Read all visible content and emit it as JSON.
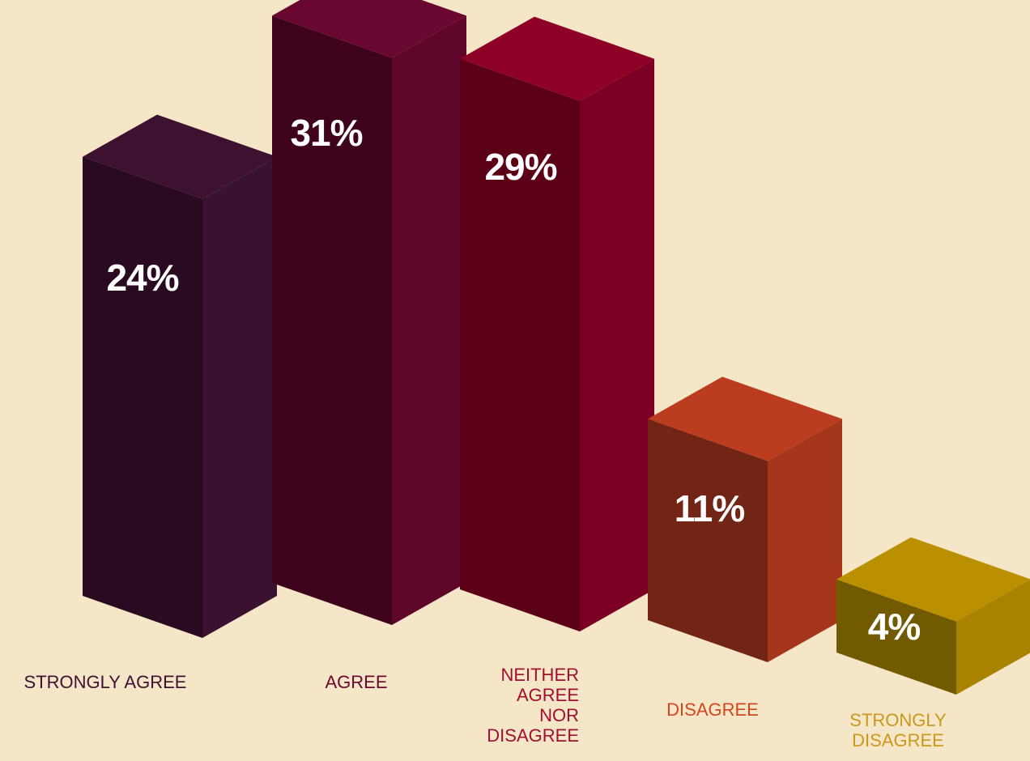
{
  "chart_data": {
    "type": "bar",
    "title": "",
    "xlabel": "",
    "ylabel": "",
    "unit": "%",
    "categories": [
      "STRONGLY AGREE",
      "AGREE",
      "NEITHER AGREE NOR DISAGREE",
      "DISAGREE",
      "STRONGLY DISAGREE"
    ],
    "category_label_lines": [
      [
        "STRONGLY AGREE"
      ],
      [
        "AGREE"
      ],
      [
        "NEITHER",
        "AGREE",
        "NOR",
        "DISAGREE"
      ],
      [
        "DISAGREE"
      ],
      [
        "STRONGLY",
        "DISAGREE"
      ]
    ],
    "values": [
      24,
      31,
      29,
      11,
      4
    ],
    "value_labels": [
      "24%",
      "31%",
      "29%",
      "11%",
      "4%"
    ],
    "grid": false,
    "legend": "none",
    "style": "3d-isometric-columns"
  },
  "colors": {
    "background": "#f6e6c8",
    "bars": [
      {
        "top": "#3e1131",
        "front": "#2a0a21",
        "side": "#3a1230",
        "label": "#3e1131"
      },
      {
        "top": "#6a0731",
        "front": "#3f021d",
        "side": "#5e062a",
        "label": "#6a0731"
      },
      {
        "top": "#8e0026",
        "front": "#5c0018",
        "side": "#7c0023",
        "label": "#a0102c"
      },
      {
        "top": "#bb3c1e",
        "front": "#722514",
        "side": "#a5361b",
        "label": "#d0471e"
      },
      {
        "top": "#bb9000",
        "front": "#725a00",
        "side": "#a98200",
        "label": "#c9981c"
      }
    ]
  }
}
